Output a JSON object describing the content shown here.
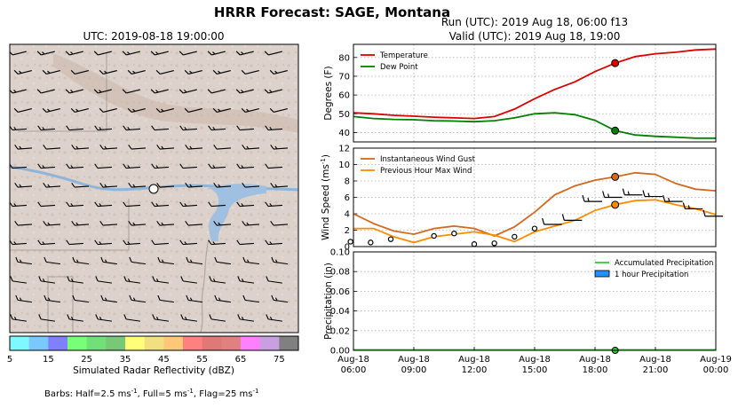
{
  "figure": {
    "title": "HRRR Forecast: SAGE, Montana",
    "map_title": "UTC: 2019-08-18 19:00:00",
    "run_line": "Run (UTC): 2019 Aug 18, 06:00 f13",
    "valid_line": "Valid (UTC): 2019 Aug 18, 19:00",
    "barbs_note": "Barbs: Half=2.5 ms",
    "barbs_note_full": "Barbs: Half=2.5 ms⁻¹, Full=5 ms⁻¹, Flag=25 ms⁻¹"
  },
  "colorbar": {
    "label": "Simulated Radar Reflectivity (dBZ)",
    "ticks": [
      "5",
      "15",
      "25",
      "35",
      "45",
      "55",
      "65",
      "75"
    ],
    "colors": [
      "#7df9ff",
      "#7ac8ff",
      "#8080ff",
      "#78ff78",
      "#72e078",
      "#78c878",
      "#ffff78",
      "#f0e080",
      "#ffc878",
      "#ff8080",
      "#e07878",
      "#e08080",
      "#ff80ff",
      "#c8a0e0",
      "#808080"
    ]
  },
  "colors": {
    "temperature": "#dd0000",
    "dew_point": "#008000",
    "gust": "#d2691e",
    "max_wind": "#ff8c00",
    "accum_precip": "#33cc33",
    "hourly_precip": "#1e90ff",
    "marker_ring": "#000000"
  },
  "chart_data": [
    {
      "type": "line",
      "name": "temperature-panel",
      "ylabel": "Degrees (F)",
      "ylim": [
        35,
        87
      ],
      "yticks": [
        "40",
        "50",
        "60",
        "70",
        "80"
      ],
      "grid": true,
      "legend": "top-left",
      "x_hours": [
        6,
        7,
        8,
        9,
        10,
        11,
        12,
        13,
        14,
        15,
        16,
        17,
        18,
        19,
        20,
        21,
        22,
        23,
        24
      ],
      "series": [
        {
          "name": "Temperature",
          "values": [
            50.5,
            50,
            49.2,
            48.7,
            48.2,
            47.8,
            47.5,
            48.5,
            52.5,
            58,
            63,
            67,
            72.5,
            77,
            80.5,
            82,
            82.8,
            84,
            84.5
          ]
        },
        {
          "name": "Dew Point",
          "values": [
            48.5,
            47.5,
            47,
            46.8,
            46.3,
            46.1,
            45.8,
            46.3,
            47.8,
            50,
            50.5,
            49.5,
            46.5,
            41,
            38.7,
            38,
            37.5,
            37,
            37
          ]
        }
      ],
      "highlight_hour": 19
    },
    {
      "type": "line",
      "name": "wind-panel",
      "ylabel": "Wind Speed (ms",
      "ylabel_full": "Wind Speed (ms⁻¹)",
      "ylim": [
        0,
        12
      ],
      "yticks": [
        "0",
        "2",
        "4",
        "6",
        "8",
        "10",
        "12"
      ],
      "grid": true,
      "legend": "top-left",
      "x_hours": [
        6,
        7,
        8,
        9,
        10,
        11,
        12,
        13,
        14,
        15,
        16,
        17,
        18,
        19,
        20,
        21,
        22,
        23,
        24
      ],
      "series": [
        {
          "name": "Instantaneous Wind Gust",
          "values": [
            4,
            2.8,
            1.9,
            1.5,
            2.2,
            2.5,
            2.2,
            1.3,
            2.4,
            4.2,
            6.3,
            7.4,
            8.1,
            8.5,
            9,
            8.8,
            7.7,
            7,
            6.8
          ]
        },
        {
          "name": "Previous Hour Max Wind",
          "values": [
            2.2,
            2.2,
            1.2,
            0.5,
            1.2,
            1.5,
            1.8,
            1.4,
            0.6,
            1.8,
            2.5,
            3.2,
            4.4,
            5.1,
            5.6,
            5.7,
            5.1,
            4.6,
            3.9
          ]
        }
      ],
      "barb_speeds": [
        1.3,
        0.6,
        0.5,
        0.9,
        1.3,
        1.6,
        0.3,
        0.4,
        1.2,
        2.2,
        2.7,
        3.2,
        5.5,
        6,
        6.3,
        6.1,
        5.5,
        4.6,
        3.7
      ],
      "highlight_hour": 19
    },
    {
      "type": "bar",
      "name": "precip-panel",
      "ylabel": "Precipitation (in)",
      "ylim": [
        0,
        0.1
      ],
      "yticks": [
        "0.00",
        "0.02",
        "0.04",
        "0.06",
        "0.08",
        "0.10"
      ],
      "grid": true,
      "legend": "top-right",
      "x_hours": [
        6,
        7,
        8,
        9,
        10,
        11,
        12,
        13,
        14,
        15,
        16,
        17,
        18,
        19,
        20,
        21,
        22,
        23,
        24
      ],
      "series": [
        {
          "name": "Accumulated Precipitation",
          "values": [
            0,
            0,
            0,
            0,
            0,
            0,
            0,
            0,
            0,
            0,
            0,
            0,
            0,
            0,
            0,
            0,
            0,
            0,
            0
          ]
        },
        {
          "name": "1 hour Precipitation",
          "values": [
            0,
            0,
            0,
            0,
            0,
            0,
            0,
            0,
            0,
            0,
            0,
            0,
            0,
            0,
            0,
            0,
            0,
            0,
            0
          ]
        }
      ],
      "highlight_hour": 19
    }
  ],
  "time_axis": {
    "ticks": [
      {
        "hour": 6,
        "line1": "Aug-18",
        "line2": "06:00"
      },
      {
        "hour": 9,
        "line1": "Aug-18",
        "line2": "09:00"
      },
      {
        "hour": 12,
        "line1": "Aug-18",
        "line2": "12:00"
      },
      {
        "hour": 15,
        "line1": "Aug-18",
        "line2": "15:00"
      },
      {
        "hour": 18,
        "line1": "Aug-18",
        "line2": "18:00"
      },
      {
        "hour": 21,
        "line1": "Aug-18",
        "line2": "21:00"
      },
      {
        "hour": 24,
        "line1": "Aug-19",
        "line2": "00:00"
      }
    ]
  }
}
